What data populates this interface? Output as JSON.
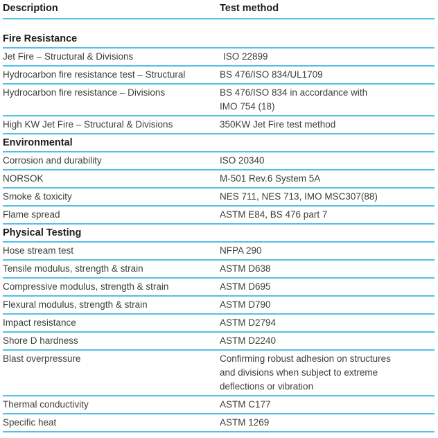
{
  "table": {
    "accent_line_color": "#54bfe7",
    "header": {
      "description": "Description",
      "test_method": "Test method"
    },
    "sections": [
      {
        "title": "Fire Resistance",
        "rows": [
          {
            "description": "Jet Fire – Structural & Divisions",
            "test_method": "ISO 22899",
            "method_indent": true
          },
          {
            "description": "Hydrocarbon fire resistance test – Structural",
            "test_method": "BS 476/ISO 834/UL1709"
          },
          {
            "description": "Hydrocarbon fire resistance – Divisions",
            "test_method": "BS 476/ISO 834 in accordance with\nIMO 754 (18)"
          },
          {
            "description": "High KW Jet Fire – Structural & Divisions",
            "test_method": "350KW Jet Fire test method"
          }
        ]
      },
      {
        "title": "Environmental",
        "rows": [
          {
            "description": "Corrosion and durability",
            "test_method": "ISO 20340"
          },
          {
            "description": "NORSOK",
            "test_method": "M-501 Rev.6 System 5A"
          },
          {
            "description": "Smoke & toxicity",
            "test_method": "NES 711, NES 713, IMO MSC307(88)"
          },
          {
            "description": "Flame spread",
            "test_method": "ASTM E84, BS 476 part 7"
          }
        ]
      },
      {
        "title": "Physical Testing",
        "rows": [
          {
            "description": "Hose stream test",
            "test_method": "NFPA 290"
          },
          {
            "description": "Tensile modulus, strength & strain",
            "test_method": "ASTM D638"
          },
          {
            "description": "Compressive modulus, strength & strain",
            "test_method": "ASTM D695"
          },
          {
            "description": "Flexural modulus, strength & strain",
            "test_method": "ASTM D790"
          },
          {
            "description": "Impact resistance",
            "test_method": "ASTM D2794"
          },
          {
            "description": "Shore D hardness",
            "test_method": "ASTM D2240"
          },
          {
            "description": "Blast overpressure",
            "test_method": "Confirming robust adhesion on structures\nand divisions when subject to extreme\ndeflections or vibration"
          },
          {
            "description": "Thermal conductivity",
            "test_method": "ASTM C177"
          },
          {
            "description": "Specific heat",
            "test_method": "ASTM 1269"
          }
        ]
      }
    ]
  }
}
